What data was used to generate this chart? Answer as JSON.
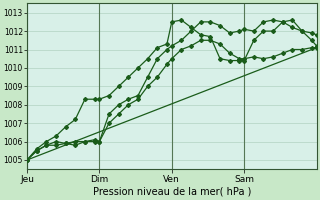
{
  "background_color": "#c8e8c8",
  "plot_bg_color": "#d8f0e8",
  "grid_color": "#b8d8c8",
  "line_color": "#1a5c1a",
  "xlabel": "Pression niveau de la mer( hPa )",
  "ylim": [
    1004.5,
    1013.5
  ],
  "yticks": [
    1005,
    1006,
    1007,
    1008,
    1009,
    1010,
    1011,
    1012,
    1013
  ],
  "xtick_labels": [
    "Jeu",
    "Dim",
    "Ven",
    "Sam"
  ],
  "xtick_positions": [
    0,
    30,
    60,
    90
  ],
  "xmax": 120,
  "line1_x": [
    0,
    4,
    8,
    12,
    16,
    20,
    24,
    28,
    30,
    34,
    38,
    42,
    46,
    50,
    54,
    58,
    60,
    64,
    68,
    72,
    76,
    80,
    84,
    88,
    90,
    94,
    98,
    102,
    106,
    110,
    114,
    118,
    120
  ],
  "line1_y": [
    1005.0,
    1005.5,
    1005.8,
    1005.8,
    1005.9,
    1006.0,
    1006.0,
    1006.1,
    1006.0,
    1007.0,
    1007.5,
    1008.0,
    1008.3,
    1009.0,
    1009.5,
    1010.2,
    1010.5,
    1011.0,
    1011.2,
    1011.5,
    1011.5,
    1011.3,
    1010.8,
    1010.5,
    1010.5,
    1010.6,
    1010.5,
    1010.6,
    1010.8,
    1011.0,
    1011.0,
    1011.1,
    1011.1
  ],
  "line2_x": [
    0,
    4,
    8,
    12,
    16,
    20,
    24,
    28,
    30,
    34,
    38,
    42,
    46,
    50,
    54,
    58,
    60,
    64,
    68,
    72,
    76,
    80,
    84,
    88,
    90,
    94,
    98,
    102,
    106,
    110,
    114,
    118,
    120
  ],
  "line2_y": [
    1005.0,
    1005.6,
    1006.0,
    1006.3,
    1006.8,
    1007.2,
    1008.3,
    1008.3,
    1008.3,
    1008.5,
    1009.0,
    1009.5,
    1010.0,
    1010.5,
    1011.1,
    1011.3,
    1012.5,
    1012.6,
    1012.2,
    1011.8,
    1011.7,
    1010.5,
    1010.4,
    1010.4,
    1010.4,
    1011.5,
    1012.0,
    1012.0,
    1012.5,
    1012.6,
    1012.0,
    1011.9,
    1011.8
  ],
  "line3_x": [
    0,
    4,
    8,
    12,
    16,
    20,
    24,
    28,
    30,
    34,
    38,
    42,
    46,
    50,
    54,
    58,
    60,
    64,
    68,
    72,
    76,
    80,
    84,
    88,
    90,
    94,
    98,
    102,
    106,
    110,
    114,
    118,
    120
  ],
  "line3_y": [
    1005.0,
    1005.5,
    1005.8,
    1006.0,
    1005.9,
    1005.8,
    1006.0,
    1006.0,
    1006.0,
    1007.5,
    1008.0,
    1008.3,
    1008.5,
    1009.5,
    1010.5,
    1011.0,
    1011.2,
    1011.5,
    1012.0,
    1012.5,
    1012.5,
    1012.3,
    1011.9,
    1012.0,
    1012.1,
    1012.0,
    1012.5,
    1012.6,
    1012.5,
    1012.2,
    1012.0,
    1011.5,
    1011.2
  ],
  "line4_x": [
    0,
    120
  ],
  "line4_y": [
    1005.0,
    1011.1
  ],
  "vlines": [
    0,
    30,
    60,
    90
  ]
}
